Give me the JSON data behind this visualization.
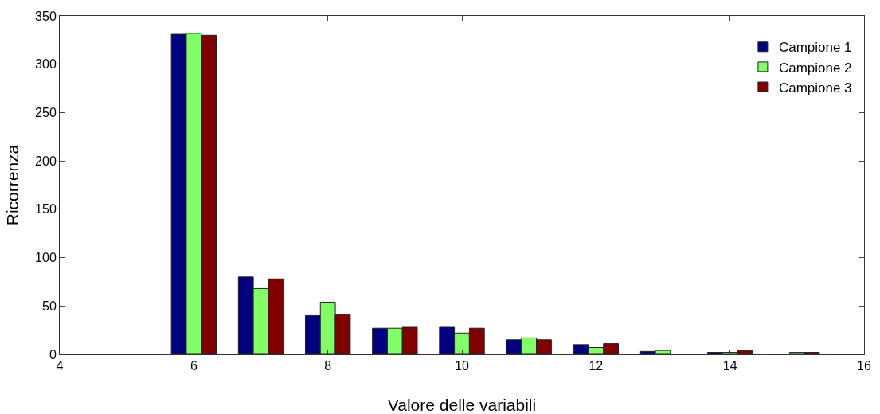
{
  "chart_data": {
    "type": "bar",
    "xlabel": "Valore delle variabili",
    "ylabel": "Ricorrenza",
    "x": [
      6,
      7,
      8,
      9,
      10,
      11,
      12,
      13,
      14,
      15
    ],
    "series": [
      {
        "name": "Campione 1",
        "color": "#000080",
        "values": [
          331,
          80,
          40,
          27,
          28,
          15,
          10,
          3,
          2,
          null
        ]
      },
      {
        "name": "Campione 2",
        "color": "#80ff66",
        "values": [
          332,
          68,
          54,
          27,
          22,
          17,
          7,
          4,
          2,
          2
        ]
      },
      {
        "name": "Campione 3",
        "color": "#800000",
        "values": [
          330,
          78,
          41,
          28,
          27,
          15,
          11,
          null,
          4,
          2
        ]
      }
    ],
    "xlim": [
      4,
      16
    ],
    "xticks": [
      4,
      6,
      8,
      10,
      12,
      14,
      16
    ],
    "ylim": [
      0,
      350
    ],
    "yticks": [
      0,
      50,
      100,
      150,
      200,
      250,
      300,
      350
    ],
    "grid": false,
    "legend": "top right"
  }
}
